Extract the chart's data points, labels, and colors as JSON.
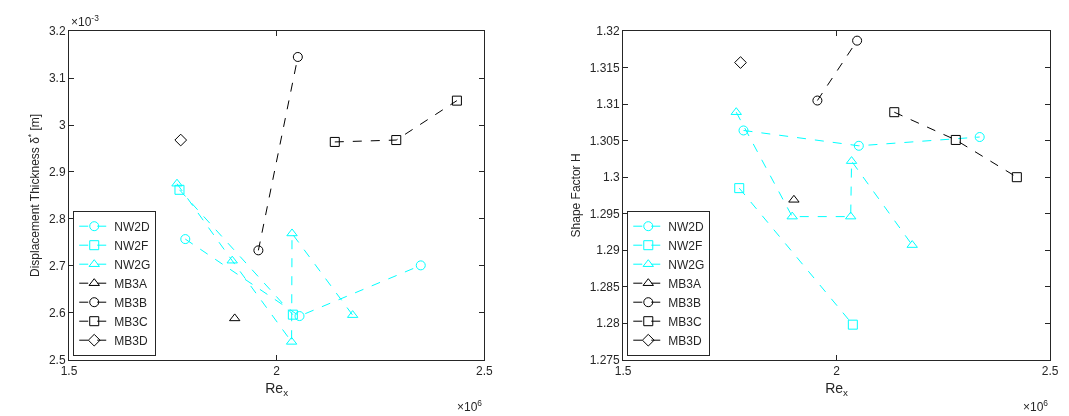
{
  "chart_data": [
    {
      "type": "line",
      "xlabel": "Re$_{x}$",
      "ylabel": "Displacement Thickness δ$^{*}$ [m]",
      "xlim": [
        1.5,
        2.5
      ],
      "xticks": [
        1.5,
        2,
        2.5
      ],
      "ylim": [
        2.5,
        3.2
      ],
      "yticks": [
        2.5,
        2.6,
        2.7,
        2.8,
        2.9,
        3,
        3.1,
        3.2
      ],
      "annotations": [
        "×10$^{6}$",
        "×10$^{-3}$"
      ],
      "legend": "bottom left",
      "line_style": "dashed",
      "series": [
        {
          "name": "NW2D",
          "color": "#00ffff",
          "marker": "circle",
          "x": [
            1.78,
            2.055,
            2.347
          ],
          "values": [
            2.757,
            2.593,
            2.701
          ]
        },
        {
          "name": "NW2F",
          "color": "#00ffff",
          "marker": "square",
          "x": [
            1.766,
            2.039
          ],
          "values": [
            2.862,
            2.596
          ]
        },
        {
          "name": "NW2G",
          "color": "#00ffff",
          "marker": "triangle",
          "x": [
            1.76,
            1.893,
            2.036,
            2.037,
            2.183
          ],
          "values": [
            2.875,
            2.711,
            2.538,
            2.769,
            2.595
          ]
        },
        {
          "name": "MB3A",
          "color": "#000000",
          "marker": "triangle",
          "x": [
            1.899
          ],
          "values": [
            2.588
          ]
        },
        {
          "name": "MB3B",
          "color": "#000000",
          "marker": "circle",
          "x": [
            1.956,
            2.051
          ],
          "values": [
            2.733,
            3.145
          ]
        },
        {
          "name": "MB3C",
          "color": "#000000",
          "marker": "square",
          "x": [
            2.14,
            2.288,
            2.434
          ],
          "values": [
            2.964,
            2.968,
            3.052
          ]
        },
        {
          "name": "MB3D",
          "color": "#000000",
          "marker": "diamond",
          "x": [
            1.769
          ],
          "values": [
            2.968
          ]
        }
      ]
    },
    {
      "type": "line",
      "xlabel": "Re$_{x}$",
      "ylabel": "Shape Factor H",
      "xlim": [
        1.5,
        2.5
      ],
      "xticks": [
        1.5,
        2,
        2.5
      ],
      "ylim": [
        1.275,
        1.32
      ],
      "yticks": [
        1.275,
        1.28,
        1.285,
        1.29,
        1.295,
        1.3,
        1.305,
        1.31,
        1.315,
        1.32
      ],
      "annotations": [
        "×10$^{6}$"
      ],
      "legend": "bottom left",
      "line_style": "dashed",
      "series": [
        {
          "name": "NW2D",
          "color": "#00ffff",
          "marker": "circle",
          "x": [
            1.782,
            2.052,
            2.335
          ],
          "values": [
            1.3064,
            1.3043,
            1.3055
          ]
        },
        {
          "name": "NW2F",
          "color": "#00ffff",
          "marker": "square",
          "x": [
            1.772,
            2.038
          ],
          "values": [
            1.2985,
            1.2798
          ]
        },
        {
          "name": "NW2G",
          "color": "#00ffff",
          "marker": "triangle",
          "x": [
            1.765,
            1.896,
            2.033,
            2.035,
            2.177
          ],
          "values": [
            1.3089,
            1.2946,
            1.2946,
            1.3022,
            1.2907
          ]
        },
        {
          "name": "MB3A",
          "color": "#000000",
          "marker": "triangle",
          "x": [
            1.9
          ],
          "values": [
            1.2969
          ]
        },
        {
          "name": "MB3B",
          "color": "#000000",
          "marker": "circle",
          "x": [
            1.955,
            2.048
          ],
          "values": [
            1.3105,
            1.3187
          ]
        },
        {
          "name": "MB3C",
          "color": "#000000",
          "marker": "square",
          "x": [
            2.135,
            2.279,
            2.422
          ],
          "values": [
            1.3089,
            1.3051,
            1.3
          ]
        },
        {
          "name": "MB3D",
          "color": "#000000",
          "marker": "diamond",
          "x": [
            1.775
          ],
          "values": [
            1.3157
          ]
        }
      ]
    }
  ]
}
